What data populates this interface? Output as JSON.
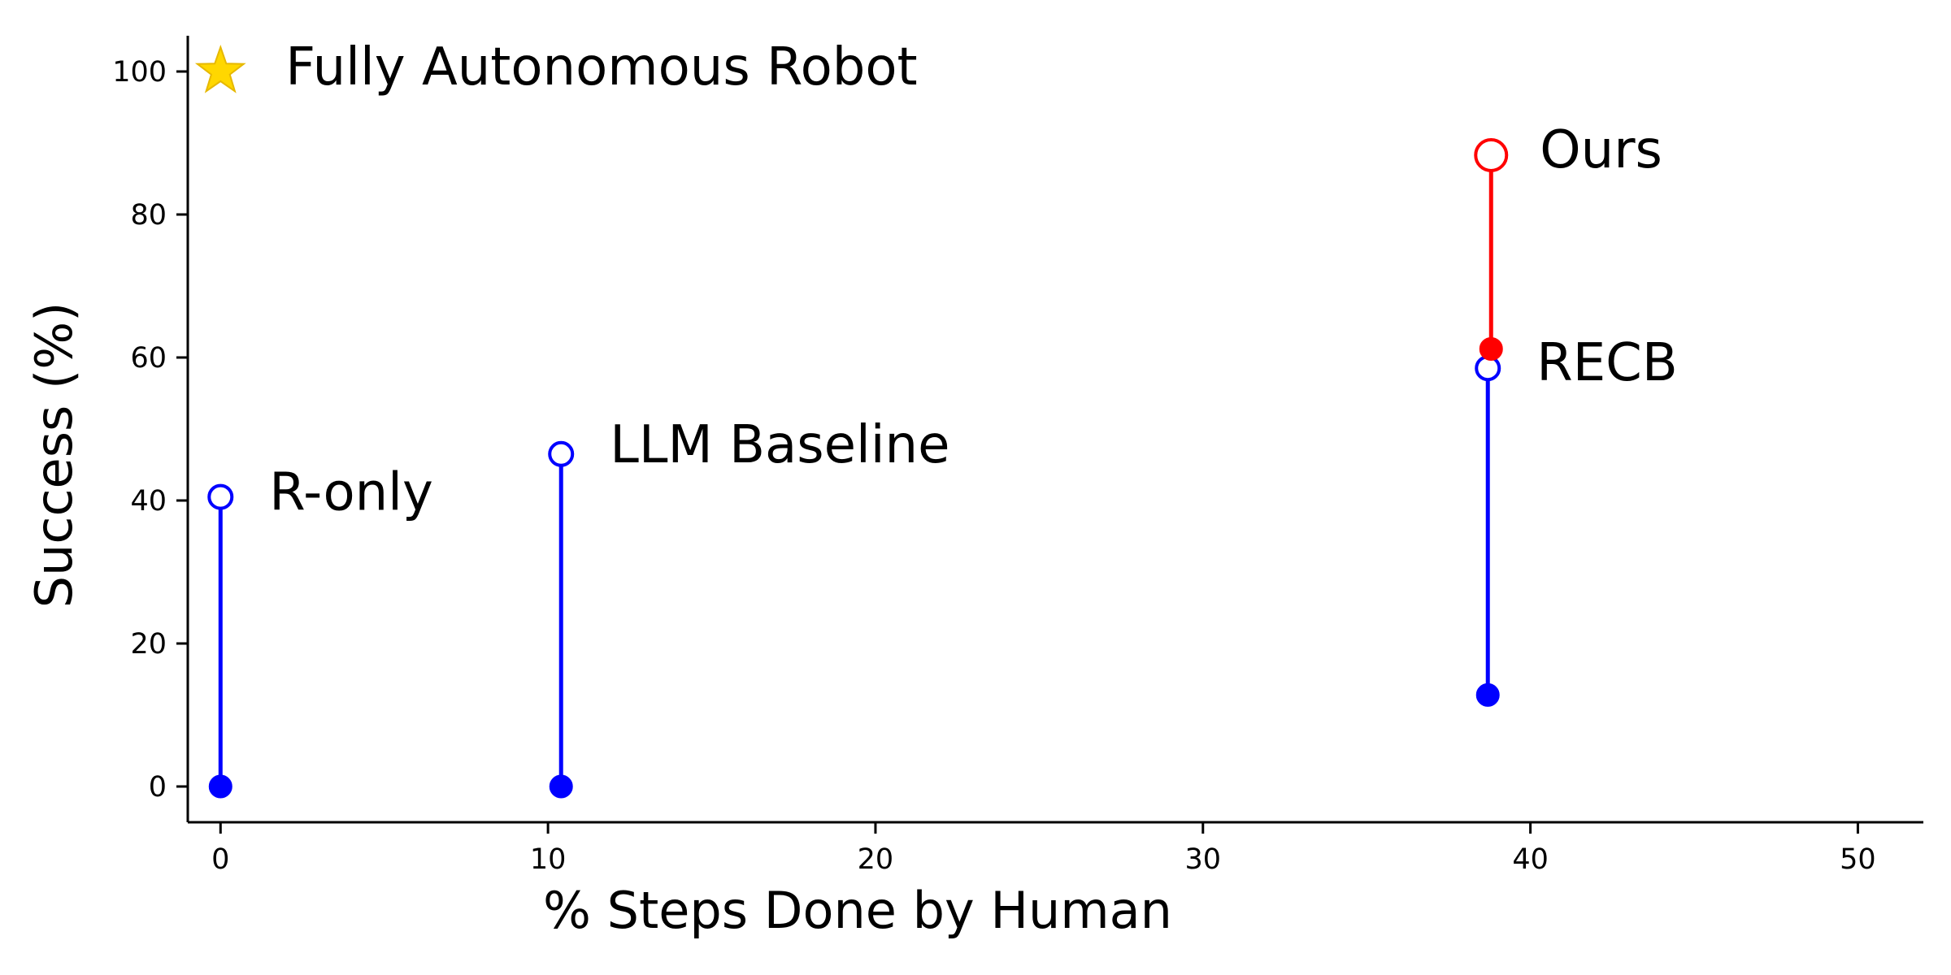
{
  "chart_data": {
    "type": "scatter",
    "title": "",
    "xlabel": "% Steps Done by Human",
    "ylabel": "Success (%)",
    "xlim": [
      -1,
      52
    ],
    "ylim": [
      -5,
      105
    ],
    "xticks": [
      0,
      10,
      20,
      30,
      40,
      50
    ],
    "yticks": [
      0,
      20,
      40,
      60,
      80,
      100
    ],
    "grid": false,
    "reference_point": {
      "label": "Fully Autonomous Robot",
      "x": 0,
      "y": 100,
      "marker": "star",
      "color": "#FFD700"
    },
    "methods": [
      {
        "name": "R-only",
        "x": 0,
        "y_low": 0,
        "y_high": 40.5,
        "color": "#0000FF"
      },
      {
        "name": "LLM Baseline",
        "x": 10.4,
        "y_low": 0,
        "y_high": 46.5,
        "color": "#0000FF"
      },
      {
        "name": "RECB",
        "x": 38.7,
        "y_low": 12.8,
        "y_high": 58.5,
        "color": "#0000FF"
      },
      {
        "name": "Ours",
        "x": 38.8,
        "y_low": 61.2,
        "y_high": 88.3,
        "color": "#FF0000"
      }
    ]
  }
}
